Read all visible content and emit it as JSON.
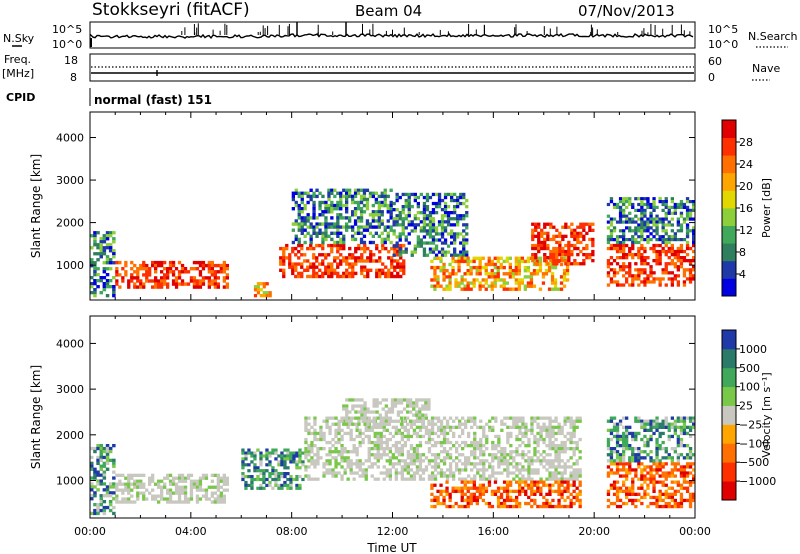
{
  "header": {
    "station": "Stokkseyri (fitACF)",
    "beam": "Beam 04",
    "date": "07/Nov/2013"
  },
  "top_panels": {
    "nsky_label": "N.Sky",
    "nsky_ticks": [
      "10^5",
      "10^0"
    ],
    "nsearch_label": "N.Search",
    "nsearch_ticks": [
      "10^5",
      "10^0"
    ],
    "freq_label": "Freq.",
    "freq_unit": "[MHz]",
    "freq_ticks": [
      "18",
      "8"
    ],
    "nave_label": "Nave",
    "nave_ticks": [
      "60",
      "0"
    ],
    "cpid_label": "CPID",
    "cpid_value": "normal (fast) 151"
  },
  "colors": {
    "power_scale": [
      "#0000e0",
      "#1f3aa8",
      "#2f7f5f",
      "#3fa85a",
      "#8ccf3a",
      "#e0d800",
      "#ffa500",
      "#ff7000",
      "#ff3000",
      "#e00000"
    ],
    "velocity_scale": [
      "#1f3aa8",
      "#2a7a6a",
      "#3fa85a",
      "#7ac84a",
      "#c8c8c0",
      "#ffa500",
      "#ff7000",
      "#ff3000",
      "#e00000"
    ]
  },
  "chart_data": [
    {
      "type": "heatmap",
      "panel": "power",
      "xlabel": "Time UT",
      "ylabel": "Slant Range [km]",
      "xlim": [
        0,
        24
      ],
      "ylim": [
        180,
        4600
      ],
      "x_ticks": [
        "00:00",
        "04:00",
        "08:00",
        "12:00",
        "16:00",
        "20:00",
        "00:00"
      ],
      "y_ticks": [
        1000,
        2000,
        3000,
        4000
      ],
      "colorbar": {
        "label": "Power [dB]",
        "ticks": [
          "4",
          "8",
          "12",
          "16",
          "20",
          "24",
          "28"
        ]
      },
      "bands": [
        {
          "t0": 0.0,
          "t1": 1.0,
          "r0": 250,
          "r1": 1800,
          "level": "low"
        },
        {
          "t0": 1.0,
          "t1": 5.5,
          "r0": 450,
          "r1": 1100,
          "level": "high"
        },
        {
          "t0": 6.5,
          "t1": 7.2,
          "r0": 250,
          "r1": 600,
          "level": "mid"
        },
        {
          "t0": 7.5,
          "t1": 12.5,
          "r0": 700,
          "r1": 1500,
          "level": "high"
        },
        {
          "t0": 8.0,
          "t1": 12.0,
          "r0": 1500,
          "r1": 2800,
          "level": "low"
        },
        {
          "t0": 12.0,
          "t1": 15.0,
          "r0": 1200,
          "r1": 2700,
          "level": "low"
        },
        {
          "t0": 13.5,
          "t1": 19.0,
          "r0": 400,
          "r1": 1200,
          "level": "mid"
        },
        {
          "t0": 17.5,
          "t1": 20.0,
          "r0": 1000,
          "r1": 2000,
          "level": "high"
        },
        {
          "t0": 20.5,
          "t1": 24.0,
          "r0": 500,
          "r1": 1500,
          "level": "high"
        },
        {
          "t0": 20.5,
          "t1": 24.0,
          "r0": 1500,
          "r1": 2600,
          "level": "low"
        }
      ]
    },
    {
      "type": "heatmap",
      "panel": "velocity",
      "xlabel": "Time UT",
      "ylabel": "Slant Range [km]",
      "xlim": [
        0,
        24
      ],
      "ylim": [
        180,
        4600
      ],
      "x_ticks": [
        "00:00",
        "04:00",
        "08:00",
        "12:00",
        "16:00",
        "20:00",
        "00:00"
      ],
      "y_ticks": [
        1000,
        2000,
        3000,
        4000
      ],
      "colorbar": {
        "label": "Velocity [m s⁻¹]",
        "ticks": [
          "1000",
          "500",
          "100",
          "25",
          "−25",
          "−100",
          "−500",
          "−1000"
        ]
      },
      "bands": [
        {
          "t0": 0.0,
          "t1": 1.0,
          "r0": 250,
          "r1": 1800,
          "level": "toward"
        },
        {
          "t0": 1.0,
          "t1": 5.5,
          "r0": 500,
          "r1": 1150,
          "level": "ground"
        },
        {
          "t0": 6.0,
          "t1": 8.5,
          "r0": 800,
          "r1": 1700,
          "level": "toward"
        },
        {
          "t0": 8.5,
          "t1": 19.5,
          "r0": 1000,
          "r1": 2400,
          "level": "ground"
        },
        {
          "t0": 13.5,
          "t1": 19.5,
          "r0": 400,
          "r1": 1000,
          "level": "away"
        },
        {
          "t0": 10.0,
          "t1": 13.5,
          "r0": 2200,
          "r1": 2800,
          "level": "ground"
        },
        {
          "t0": 20.5,
          "t1": 24.0,
          "r0": 400,
          "r1": 1400,
          "level": "away"
        },
        {
          "t0": 20.5,
          "t1": 24.0,
          "r0": 1400,
          "r1": 2400,
          "level": "toward"
        }
      ]
    }
  ]
}
